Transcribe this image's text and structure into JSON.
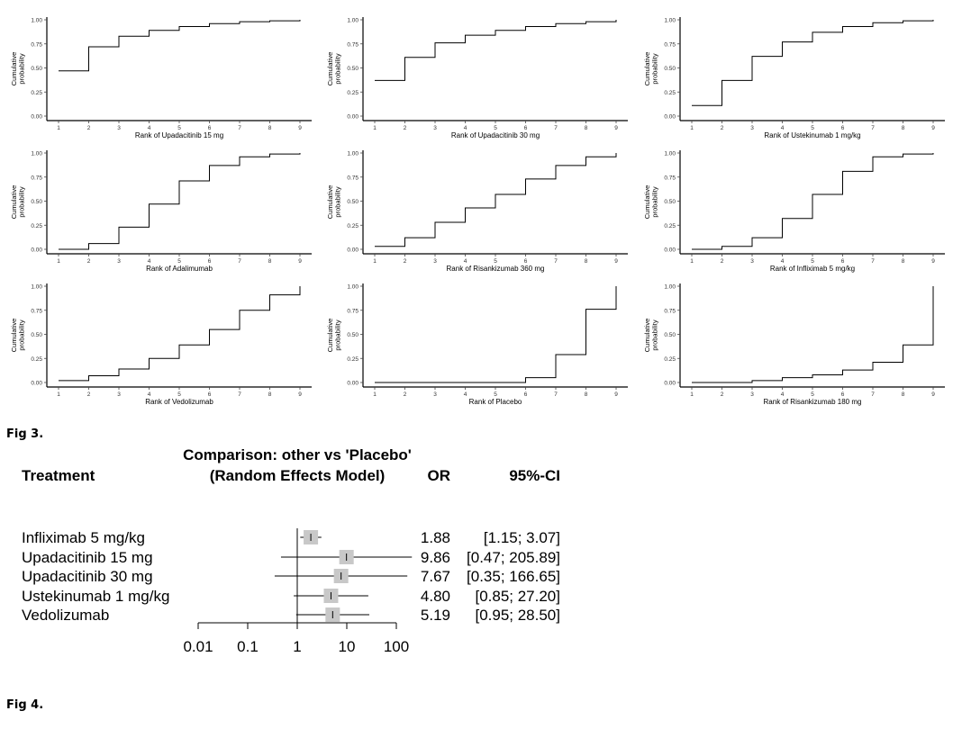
{
  "fig3": {
    "caption": "Fig 3.",
    "chart_data": [
      {
        "type": "line",
        "step": true,
        "xlabel": "Rank of Upadacitinib 15 mg",
        "ylabel": "Cumulative probability",
        "x": [
          1,
          2,
          3,
          4,
          5,
          6,
          7,
          8,
          9
        ],
        "values": [
          0.47,
          0.72,
          0.83,
          0.89,
          0.93,
          0.96,
          0.98,
          0.99,
          1.0
        ],
        "xlim": [
          1,
          9
        ],
        "ylim": [
          0,
          1
        ],
        "yticks": [
          "0.00",
          "0.25",
          "0.50",
          "0.75",
          "1.00"
        ]
      },
      {
        "type": "line",
        "step": true,
        "xlabel": "Rank of Upadacitinib 30 mg",
        "ylabel": "Cumulative probability",
        "x": [
          1,
          2,
          3,
          4,
          5,
          6,
          7,
          8,
          9
        ],
        "values": [
          0.37,
          0.61,
          0.76,
          0.84,
          0.89,
          0.93,
          0.96,
          0.98,
          1.0
        ],
        "xlim": [
          1,
          9
        ],
        "ylim": [
          0,
          1
        ],
        "yticks": [
          "0.00",
          "0.25",
          "0.50",
          "0.75",
          "1.00"
        ]
      },
      {
        "type": "line",
        "step": true,
        "xlabel": "Rank of Ustekinumab 1 mg/kg",
        "ylabel": "Cumulative probability",
        "x": [
          1,
          2,
          3,
          4,
          5,
          6,
          7,
          8,
          9
        ],
        "values": [
          0.11,
          0.37,
          0.62,
          0.77,
          0.87,
          0.93,
          0.97,
          0.99,
          1.0
        ],
        "xlim": [
          1,
          9
        ],
        "ylim": [
          0,
          1
        ],
        "yticks": [
          "0.00",
          "0.25",
          "0.50",
          "0.75",
          "1.00"
        ]
      },
      {
        "type": "line",
        "step": true,
        "xlabel": "Rank of Adalimumab",
        "ylabel": "Cumulative probability",
        "x": [
          1,
          2,
          3,
          4,
          5,
          6,
          7,
          8,
          9
        ],
        "values": [
          0.0,
          0.06,
          0.23,
          0.47,
          0.71,
          0.87,
          0.96,
          0.99,
          1.0
        ],
        "xlim": [
          1,
          9
        ],
        "ylim": [
          0,
          1
        ],
        "yticks": [
          "0.00",
          "0.25",
          "0.50",
          "0.75",
          "1.00"
        ]
      },
      {
        "type": "line",
        "step": true,
        "xlabel": "Rank of Risankizumab 360 mg",
        "ylabel": "Cumulative probability",
        "x": [
          1,
          2,
          3,
          4,
          5,
          6,
          7,
          8,
          9
        ],
        "values": [
          0.03,
          0.12,
          0.28,
          0.43,
          0.57,
          0.73,
          0.87,
          0.96,
          1.0
        ],
        "xlim": [
          1,
          9
        ],
        "ylim": [
          0,
          1
        ],
        "yticks": [
          "0.00",
          "0.25",
          "0.50",
          "0.75",
          "1.00"
        ]
      },
      {
        "type": "line",
        "step": true,
        "xlabel": "Rank of Infliximab 5 mg/kg",
        "ylabel": "Cumulative probability",
        "x": [
          1,
          2,
          3,
          4,
          5,
          6,
          7,
          8,
          9
        ],
        "values": [
          0.0,
          0.03,
          0.12,
          0.32,
          0.57,
          0.81,
          0.96,
          0.99,
          1.0
        ],
        "xlim": [
          1,
          9
        ],
        "ylim": [
          0,
          1
        ],
        "yticks": [
          "0.00",
          "0.25",
          "0.50",
          "0.75",
          "1.00"
        ]
      },
      {
        "type": "line",
        "step": true,
        "xlabel": "Rank of Vedolizumab",
        "ylabel": "Cumulative probability",
        "x": [
          1,
          2,
          3,
          4,
          5,
          6,
          7,
          8,
          9
        ],
        "values": [
          0.02,
          0.07,
          0.14,
          0.25,
          0.39,
          0.55,
          0.75,
          0.91,
          1.0
        ],
        "xlim": [
          1,
          9
        ],
        "ylim": [
          0,
          1
        ],
        "yticks": [
          "0.00",
          "0.25",
          "0.50",
          "0.75",
          "1.00"
        ]
      },
      {
        "type": "line",
        "step": true,
        "xlabel": "Rank of Placebo",
        "ylabel": "Cumulative probability",
        "x": [
          1,
          2,
          3,
          4,
          5,
          6,
          7,
          8,
          9
        ],
        "values": [
          0.0,
          0.0,
          0.0,
          0.0,
          0.0,
          0.05,
          0.29,
          0.76,
          1.0
        ],
        "xlim": [
          1,
          9
        ],
        "ylim": [
          0,
          1
        ],
        "yticks": [
          "0.00",
          "0.25",
          "0.50",
          "0.75",
          "1.00"
        ]
      },
      {
        "type": "line",
        "step": true,
        "xlabel": "Rank of Risankizumab 180 mg",
        "ylabel": "Cumulative probability",
        "x": [
          1,
          2,
          3,
          4,
          5,
          6,
          7,
          8,
          9
        ],
        "values": [
          0.0,
          0.0,
          0.02,
          0.05,
          0.08,
          0.13,
          0.21,
          0.39,
          1.0
        ],
        "xlim": [
          1,
          9
        ],
        "ylim": [
          0,
          1
        ],
        "yticks": [
          "0.00",
          "0.25",
          "0.50",
          "0.75",
          "1.00"
        ]
      }
    ]
  },
  "fig4": {
    "caption": "Fig 4.",
    "headers": {
      "treatment": "Treatment",
      "comparison_line1": "Comparison: other vs 'Placebo'",
      "comparison_line2": "(Random Effects Model)",
      "or": "OR",
      "ci": "95%-CI"
    },
    "chart_data": {
      "type": "scatter",
      "subtype": "forest",
      "xscale": "log",
      "xlim": [
        0.01,
        100
      ],
      "xticks": [
        "0.01",
        "0.1",
        "1",
        "10",
        "100"
      ],
      "xtick_values": [
        0.01,
        0.1,
        1,
        10,
        100
      ],
      "reference_line": 1,
      "rows": [
        {
          "treatment": "Infliximab 5 mg/kg",
          "or": 1.88,
          "lower": 1.15,
          "upper": 3.07,
          "or_text": "1.88",
          "ci_text": "[1.15;   3.07]"
        },
        {
          "treatment": "Upadacitinib 15 mg",
          "or": 9.86,
          "lower": 0.47,
          "upper": 205.89,
          "or_text": "9.86",
          "ci_text": "[0.47; 205.89]"
        },
        {
          "treatment": "Upadacitinib 30 mg",
          "or": 7.67,
          "lower": 0.35,
          "upper": 166.65,
          "or_text": "7.67",
          "ci_text": "[0.35; 166.65]"
        },
        {
          "treatment": "Ustekinumab 1 mg/kg",
          "or": 4.8,
          "lower": 0.85,
          "upper": 27.2,
          "or_text": "4.80",
          "ci_text": "[0.85;   27.20]"
        },
        {
          "treatment": "Vedolizumab",
          "or": 5.19,
          "lower": 0.95,
          "upper": 28.5,
          "or_text": "5.19",
          "ci_text": "[0.95;   28.50]"
        }
      ],
      "colors": {
        "box": "#c8c8c8",
        "line": "#000000"
      }
    }
  }
}
